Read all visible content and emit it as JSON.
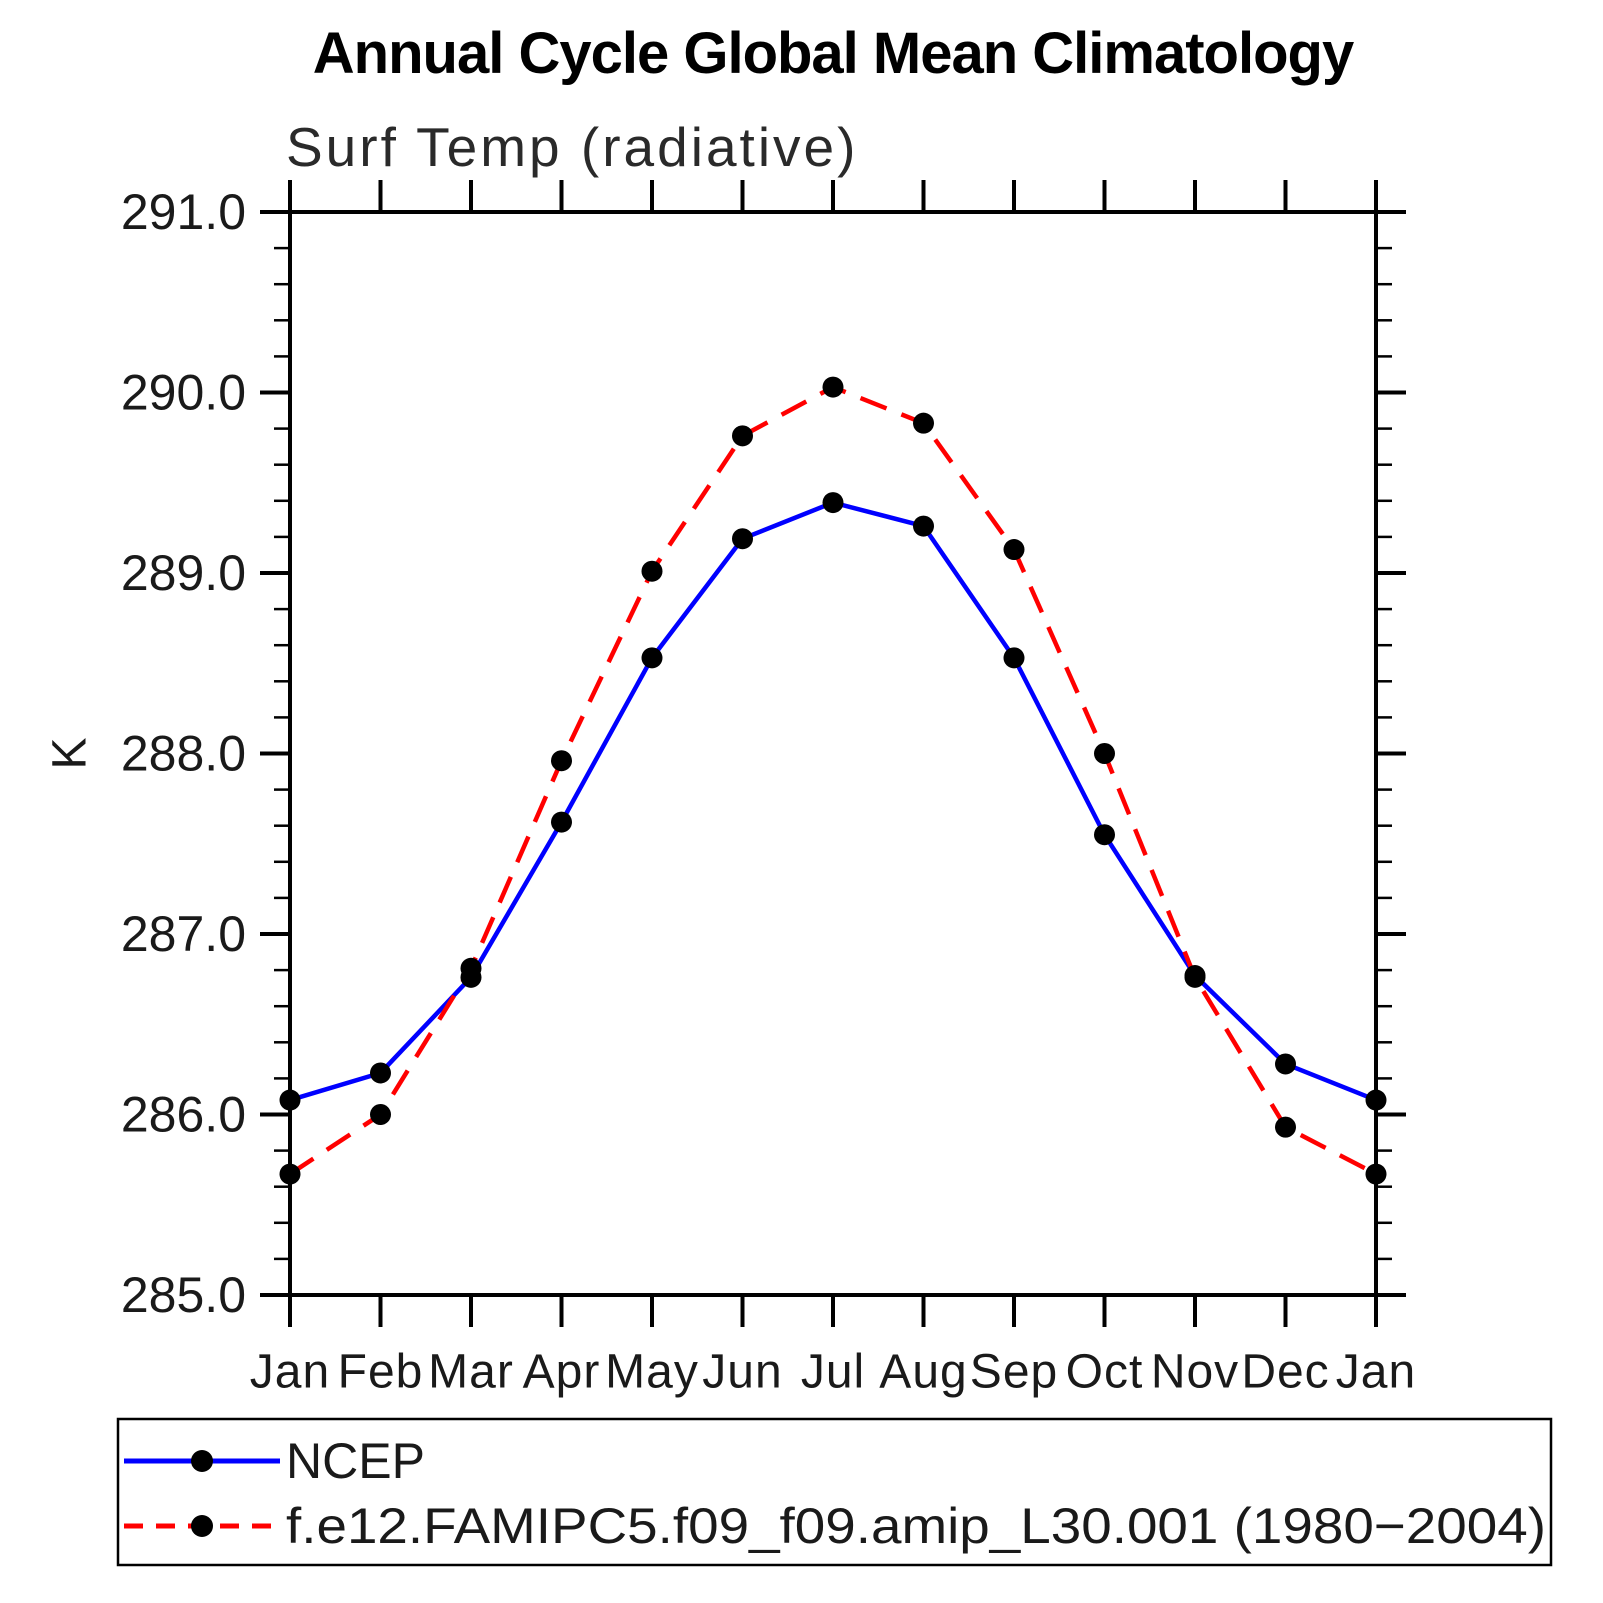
{
  "chart_data": {
    "type": "line",
    "title": "Annual Cycle Global Mean Climatology",
    "subtitle": "Surf Temp (radiative)",
    "xlabel": "",
    "ylabel": "K",
    "ylim": [
      285.0,
      291.0
    ],
    "ytick_interval": 1.0,
    "yminor_interval": 0.2,
    "ytick_labels": [
      "285.0",
      "286.0",
      "287.0",
      "288.0",
      "289.0",
      "290.0",
      "291.0"
    ],
    "categories": [
      "Jan",
      "Feb",
      "Mar",
      "Apr",
      "May",
      "Jun",
      "Jul",
      "Aug",
      "Sep",
      "Oct",
      "Nov",
      "Dec",
      "Jan"
    ],
    "grid": false,
    "legend_position": "bottom",
    "marker_color": "#000000",
    "axis_color": "#000000",
    "series": [
      {
        "name": "NCEP",
        "color": "#0000ff",
        "style": "solid",
        "marker": "circle",
        "values": [
          286.08,
          286.23,
          286.76,
          287.62,
          288.53,
          289.19,
          289.39,
          289.26,
          288.53,
          287.55,
          286.77,
          286.28,
          286.08
        ]
      },
      {
        "name": "f.e12.FAMIPC5.f09_f09.amip_L30.001 (1980−2004)",
        "color": "#ff0000",
        "style": "dashed",
        "marker": "circle",
        "values": [
          285.67,
          286.0,
          286.81,
          287.96,
          289.01,
          289.76,
          290.03,
          289.83,
          289.13,
          288.0,
          286.76,
          285.93,
          285.67
        ]
      }
    ]
  }
}
